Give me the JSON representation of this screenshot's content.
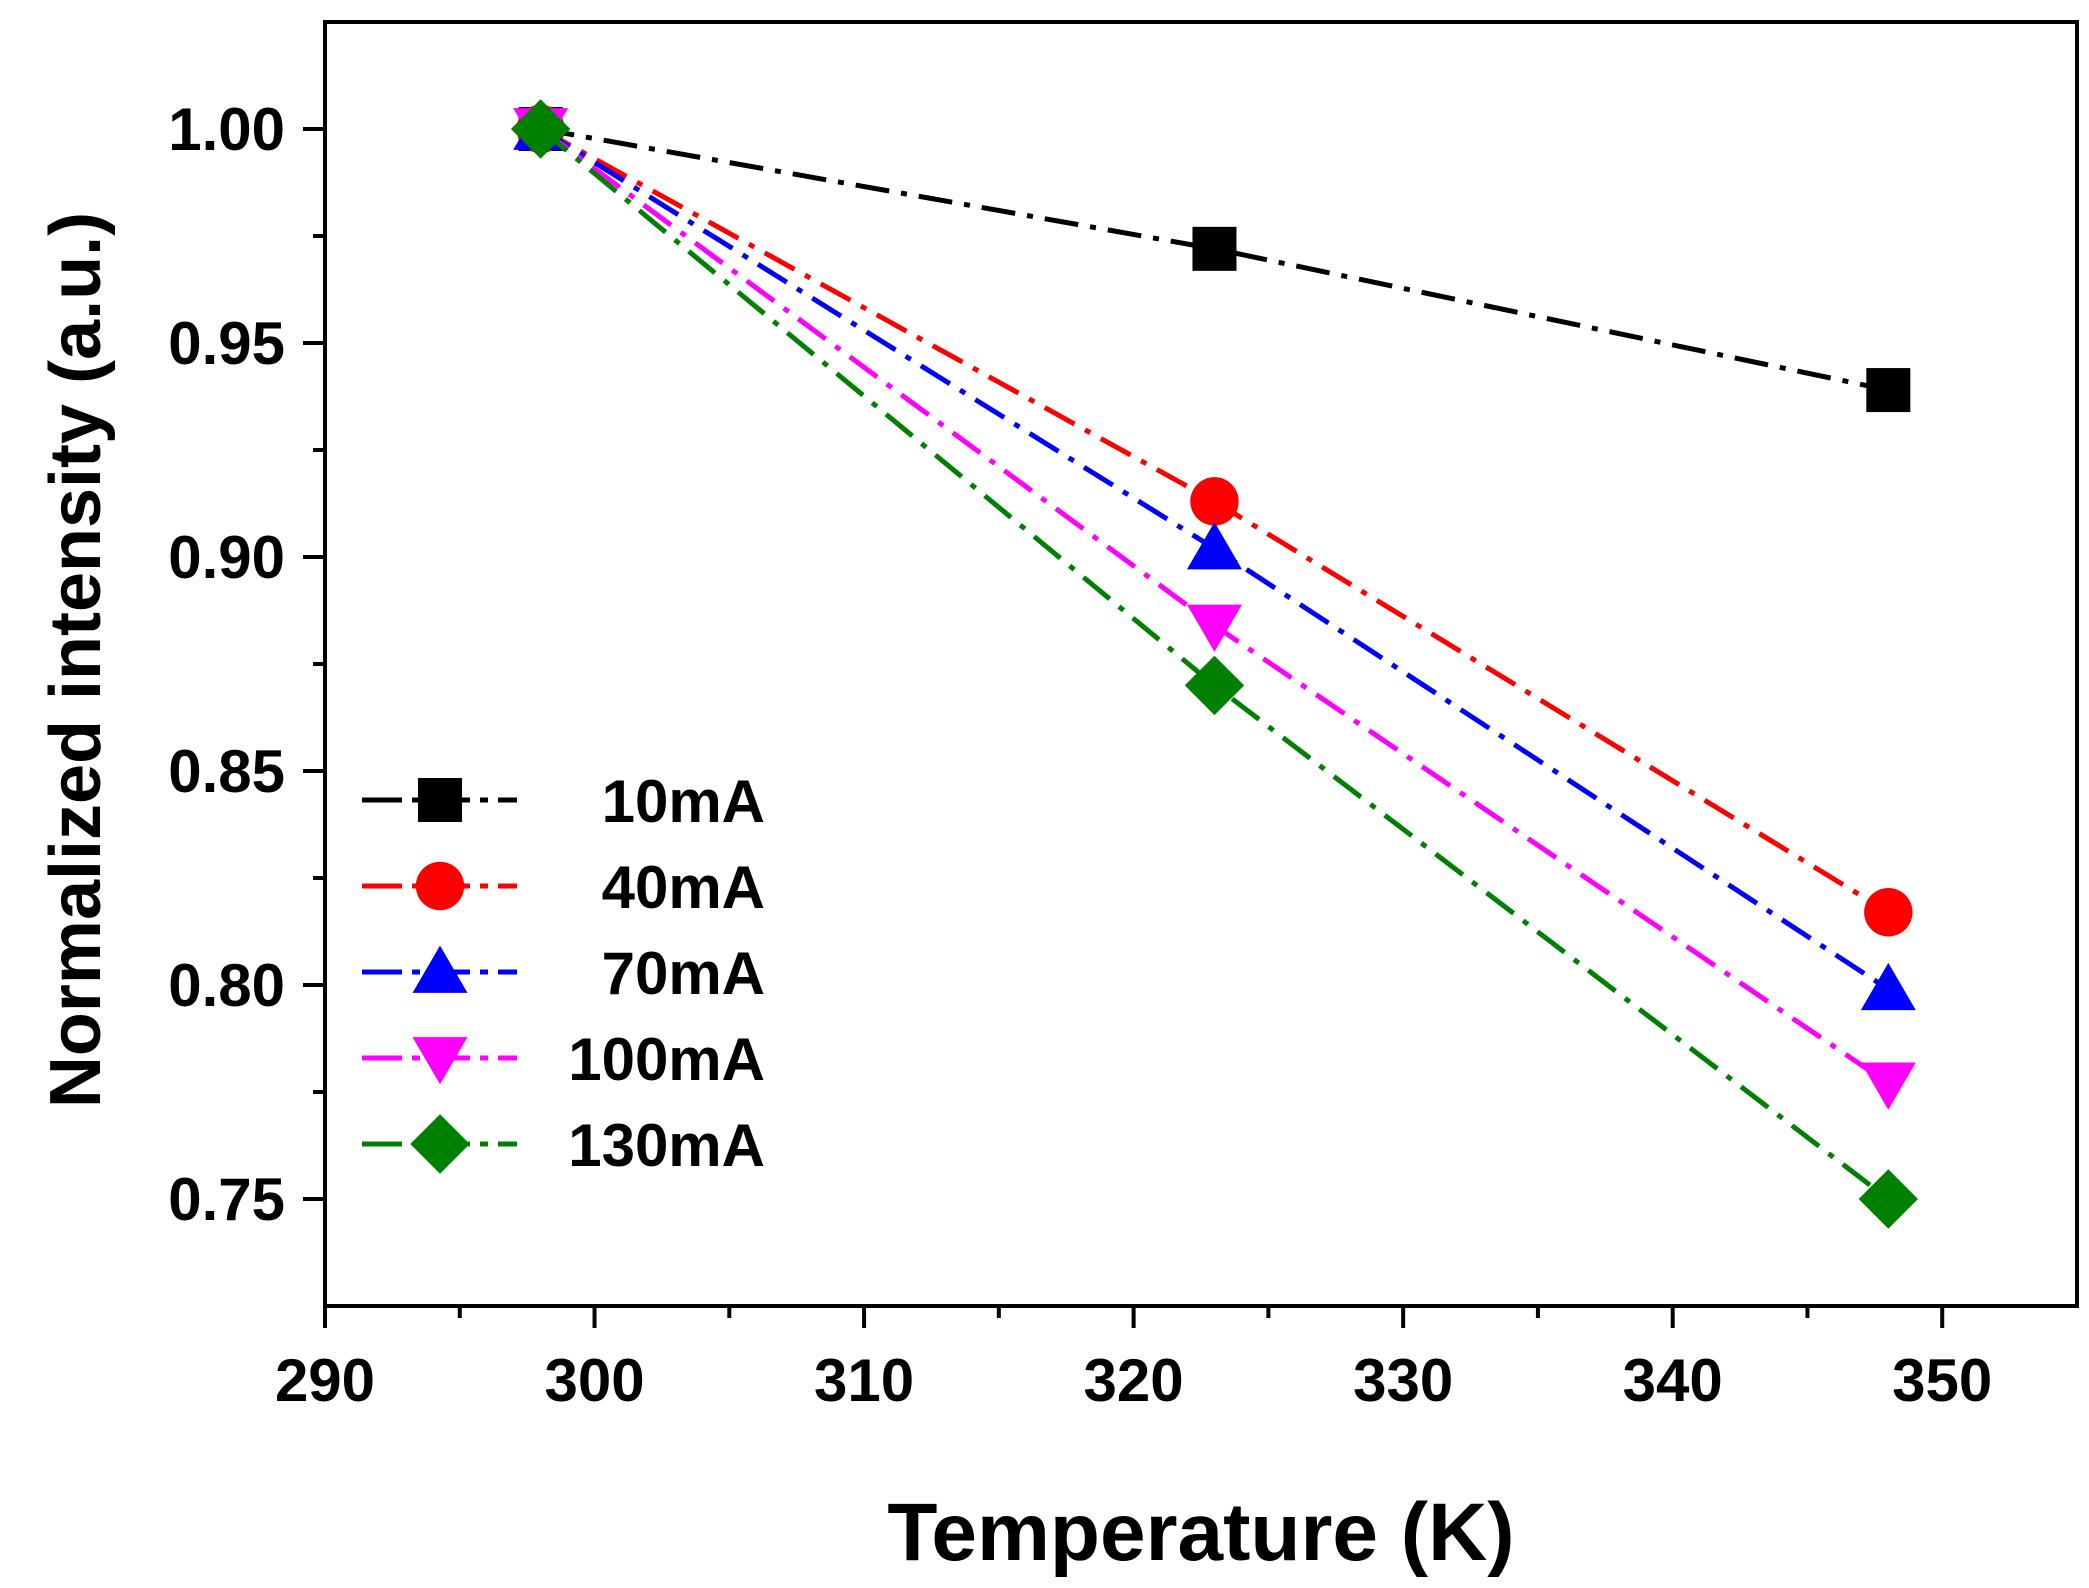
{
  "chart_data": {
    "type": "line",
    "title": "",
    "xlabel": "Temperature (K)",
    "ylabel": "Normalized intensity  (a.u.)",
    "xlim": [
      290,
      355
    ],
    "ylim": [
      0.725,
      1.025
    ],
    "x_ticks": [
      290,
      300,
      310,
      320,
      330,
      340,
      350
    ],
    "y_ticks": [
      0.75,
      0.8,
      0.85,
      0.9,
      0.95,
      1.0
    ],
    "x_tick_labels": [
      "290",
      "300",
      "310",
      "320",
      "330",
      "340",
      "350"
    ],
    "y_tick_labels": [
      "0.75",
      "0.80",
      "0.85",
      "0.90",
      "0.95",
      "1.00"
    ],
    "grid": false,
    "legend_position": "lower-left",
    "x": [
      298,
      323,
      348
    ],
    "series": [
      {
        "name": "10mA",
        "marker": "square",
        "color": "#000000",
        "values": [
          1.0,
          0.972,
          0.939
        ]
      },
      {
        "name": "40mA",
        "marker": "circle",
        "color": "#ff0000",
        "values": [
          1.0,
          0.913,
          0.817
        ]
      },
      {
        "name": "70mA",
        "marker": "triangle-up",
        "color": "#0000ff",
        "values": [
          1.0,
          0.902,
          0.799
        ]
      },
      {
        "name": "100mA",
        "marker": "triangle-down",
        "color": "#ff00ff",
        "values": [
          1.0,
          0.884,
          0.777
        ]
      },
      {
        "name": "130mA",
        "marker": "diamond",
        "color": "#008000",
        "values": [
          1.0,
          0.87,
          0.75
        ]
      }
    ]
  }
}
